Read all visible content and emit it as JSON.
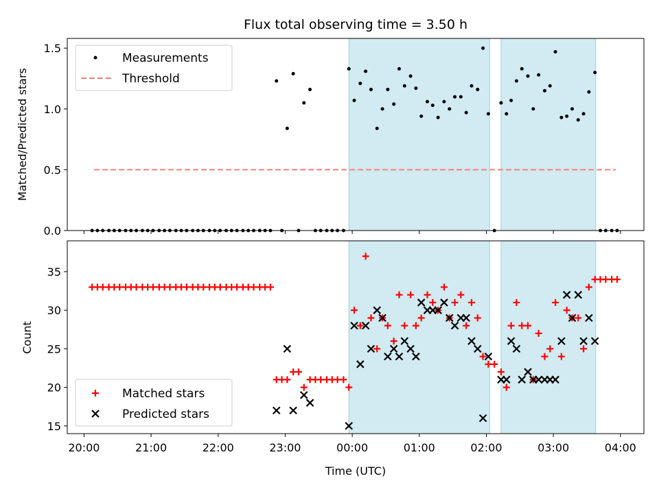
{
  "chart_data": {
    "title": "Flux total observing time = 3.50 h",
    "xlabel": "Time (UTC)",
    "x_ticks": [
      "20:00",
      "21:00",
      "22:00",
      "23:00",
      "00:00",
      "01:00",
      "02:00",
      "03:00",
      "04:00"
    ],
    "x_range_hours": [
      19.75,
      28.35
    ],
    "shaded_intervals_hours": [
      [
        23.95,
        26.05
      ],
      [
        26.22,
        27.63
      ]
    ],
    "shade_color": "#add8e6",
    "panels": [
      {
        "type": "scatter",
        "ylabel": "Matched/Predicted stars",
        "ylim": [
          0,
          1.58
        ],
        "y_ticks": [
          "0.0",
          "0.5",
          "1.0",
          "1.5"
        ],
        "legend": {
          "placement": "top-left",
          "entries": [
            "Measurements",
            "Threshold"
          ]
        },
        "threshold": {
          "name": "Threshold",
          "value": 0.5,
          "x_start": 20.15,
          "x_end": 27.93,
          "color": "#ff7f7f"
        },
        "series": [
          {
            "name": "Measurements",
            "color": "#000000",
            "points": [
              [
                20.12,
                0
              ],
              [
                20.2,
                0
              ],
              [
                20.28,
                0
              ],
              [
                20.37,
                0
              ],
              [
                20.45,
                0
              ],
              [
                20.53,
                0
              ],
              [
                20.62,
                0
              ],
              [
                20.7,
                0
              ],
              [
                20.78,
                0
              ],
              [
                20.87,
                0
              ],
              [
                20.95,
                0
              ],
              [
                21.03,
                0
              ],
              [
                21.12,
                0
              ],
              [
                21.2,
                0
              ],
              [
                21.28,
                0
              ],
              [
                21.37,
                0
              ],
              [
                21.45,
                0
              ],
              [
                21.53,
                0
              ],
              [
                21.62,
                0
              ],
              [
                21.7,
                0
              ],
              [
                21.78,
                0
              ],
              [
                21.87,
                0
              ],
              [
                21.95,
                0
              ],
              [
                22.03,
                0
              ],
              [
                22.12,
                0
              ],
              [
                22.2,
                0
              ],
              [
                22.28,
                0
              ],
              [
                22.37,
                0
              ],
              [
                22.45,
                0
              ],
              [
                22.53,
                0
              ],
              [
                22.62,
                0
              ],
              [
                22.7,
                0
              ],
              [
                22.78,
                0
              ],
              [
                22.87,
                1.23
              ],
              [
                22.95,
                0
              ],
              [
                23.03,
                0.84
              ],
              [
                23.12,
                1.29
              ],
              [
                23.2,
                0
              ],
              [
                23.28,
                1.05
              ],
              [
                23.37,
                1.16
              ],
              [
                23.45,
                0
              ],
              [
                23.53,
                0
              ],
              [
                23.62,
                0
              ],
              [
                23.7,
                0
              ],
              [
                23.78,
                0
              ],
              [
                23.87,
                0
              ],
              [
                23.95,
                1.33
              ],
              [
                24.03,
                1.07
              ],
              [
                24.12,
                1.21
              ],
              [
                24.2,
                1.31
              ],
              [
                24.28,
                1.16
              ],
              [
                24.37,
                0.84
              ],
              [
                24.45,
                1.0
              ],
              [
                24.53,
                1.16
              ],
              [
                24.62,
                1.04
              ],
              [
                24.7,
                1.33
              ],
              [
                24.78,
                1.19
              ],
              [
                24.87,
                1.27
              ],
              [
                24.95,
                1.17
              ],
              [
                25.03,
                0.94
              ],
              [
                25.12,
                1.06
              ],
              [
                25.2,
                1.03
              ],
              [
                25.28,
                0.93
              ],
              [
                25.37,
                1.06
              ],
              [
                25.45,
                1.0
              ],
              [
                25.53,
                1.1
              ],
              [
                25.62,
                1.1
              ],
              [
                25.7,
                0.97
              ],
              [
                25.78,
                1.19
              ],
              [
                25.87,
                1.16
              ],
              [
                25.95,
                1.5
              ],
              [
                26.03,
                0.96
              ],
              [
                26.12,
                0
              ],
              [
                26.22,
                1.05
              ],
              [
                26.3,
                0.96
              ],
              [
                26.37,
                1.07
              ],
              [
                26.45,
                1.23
              ],
              [
                26.53,
                1.33
              ],
              [
                26.62,
                1.27
              ],
              [
                26.7,
                1.0
              ],
              [
                26.78,
                1.28
              ],
              [
                26.87,
                1.15
              ],
              [
                26.95,
                1.19
              ],
              [
                27.03,
                1.47
              ],
              [
                27.12,
                0.93
              ],
              [
                27.2,
                0.94
              ],
              [
                27.28,
                1.0
              ],
              [
                27.37,
                0.91
              ],
              [
                27.45,
                0.96
              ],
              [
                27.53,
                1.14
              ],
              [
                27.62,
                1.3
              ],
              [
                27.7,
                0
              ],
              [
                27.78,
                0
              ],
              [
                27.87,
                0
              ],
              [
                27.95,
                0
              ]
            ]
          }
        ]
      },
      {
        "type": "scatter",
        "ylabel": "Count",
        "ylim": [
          14,
          39
        ],
        "y_ticks": [
          "15",
          "20",
          "25",
          "30",
          "35"
        ],
        "legend": {
          "placement": "bottom-left",
          "entries": [
            "Matched stars",
            "Predicted stars"
          ]
        },
        "series": [
          {
            "name": "Matched stars",
            "color": "#ff0000",
            "marker": "plus",
            "points": [
              [
                20.12,
                33
              ],
              [
                20.2,
                33
              ],
              [
                20.28,
                33
              ],
              [
                20.37,
                33
              ],
              [
                20.45,
                33
              ],
              [
                20.53,
                33
              ],
              [
                20.62,
                33
              ],
              [
                20.7,
                33
              ],
              [
                20.78,
                33
              ],
              [
                20.87,
                33
              ],
              [
                20.95,
                33
              ],
              [
                21.03,
                33
              ],
              [
                21.12,
                33
              ],
              [
                21.2,
                33
              ],
              [
                21.28,
                33
              ],
              [
                21.37,
                33
              ],
              [
                21.45,
                33
              ],
              [
                21.53,
                33
              ],
              [
                21.62,
                33
              ],
              [
                21.7,
                33
              ],
              [
                21.78,
                33
              ],
              [
                21.87,
                33
              ],
              [
                21.95,
                33
              ],
              [
                22.03,
                33
              ],
              [
                22.12,
                33
              ],
              [
                22.2,
                33
              ],
              [
                22.28,
                33
              ],
              [
                22.37,
                33
              ],
              [
                22.45,
                33
              ],
              [
                22.53,
                33
              ],
              [
                22.62,
                33
              ],
              [
                22.7,
                33
              ],
              [
                22.78,
                33
              ],
              [
                22.87,
                21
              ],
              [
                22.95,
                21
              ],
              [
                23.03,
                21
              ],
              [
                23.12,
                22
              ],
              [
                23.2,
                22
              ],
              [
                23.28,
                20
              ],
              [
                23.37,
                21
              ],
              [
                23.45,
                21
              ],
              [
                23.53,
                21
              ],
              [
                23.62,
                21
              ],
              [
                23.7,
                21
              ],
              [
                23.78,
                21
              ],
              [
                23.87,
                21
              ],
              [
                23.95,
                20
              ],
              [
                24.03,
                30
              ],
              [
                24.12,
                28
              ],
              [
                24.2,
                37
              ],
              [
                24.28,
                29
              ],
              [
                24.37,
                25
              ],
              [
                24.45,
                29
              ],
              [
                24.53,
                28
              ],
              [
                24.62,
                26
              ],
              [
                24.7,
                32
              ],
              [
                24.78,
                28
              ],
              [
                24.87,
                32
              ],
              [
                24.95,
                28
              ],
              [
                25.03,
                29
              ],
              [
                25.12,
                32
              ],
              [
                25.2,
                31
              ],
              [
                25.28,
                30
              ],
              [
                25.37,
                33
              ],
              [
                25.45,
                29
              ],
              [
                25.53,
                31
              ],
              [
                25.62,
                32
              ],
              [
                25.7,
                28
              ],
              [
                25.78,
                31
              ],
              [
                25.87,
                29
              ],
              [
                25.95,
                24
              ],
              [
                26.03,
                23
              ],
              [
                26.12,
                23
              ],
              [
                26.22,
                22
              ],
              [
                26.3,
                20
              ],
              [
                26.37,
                28
              ],
              [
                26.45,
                31
              ],
              [
                26.53,
                28
              ],
              [
                26.62,
                28
              ],
              [
                26.7,
                21
              ],
              [
                26.78,
                27
              ],
              [
                26.87,
                24
              ],
              [
                26.95,
                25
              ],
              [
                27.03,
                31
              ],
              [
                27.12,
                24
              ],
              [
                27.2,
                30
              ],
              [
                27.28,
                29
              ],
              [
                27.37,
                29
              ],
              [
                27.45,
                25
              ],
              [
                27.53,
                33
              ],
              [
                27.62,
                34
              ],
              [
                27.7,
                34
              ],
              [
                27.78,
                34
              ],
              [
                27.87,
                34
              ],
              [
                27.95,
                34
              ]
            ]
          },
          {
            "name": "Predicted stars",
            "color": "#000000",
            "marker": "x",
            "points": [
              [
                22.87,
                17
              ],
              [
                23.03,
                25
              ],
              [
                23.12,
                17
              ],
              [
                23.28,
                19
              ],
              [
                23.37,
                18
              ],
              [
                23.95,
                15
              ],
              [
                24.03,
                28
              ],
              [
                24.12,
                23
              ],
              [
                24.2,
                28
              ],
              [
                24.28,
                25
              ],
              [
                24.37,
                30
              ],
              [
                24.45,
                29
              ],
              [
                24.53,
                24
              ],
              [
                24.62,
                25
              ],
              [
                24.7,
                24
              ],
              [
                24.78,
                26
              ],
              [
                24.87,
                25
              ],
              [
                24.95,
                24
              ],
              [
                25.03,
                31
              ],
              [
                25.12,
                30
              ],
              [
                25.2,
                30
              ],
              [
                25.28,
                30
              ],
              [
                25.37,
                31
              ],
              [
                25.45,
                29
              ],
              [
                25.53,
                28
              ],
              [
                25.62,
                29
              ],
              [
                25.7,
                29
              ],
              [
                25.78,
                26
              ],
              [
                25.87,
                25
              ],
              [
                25.95,
                16
              ],
              [
                26.03,
                24
              ],
              [
                26.22,
                21
              ],
              [
                26.3,
                21
              ],
              [
                26.37,
                26
              ],
              [
                26.45,
                25
              ],
              [
                26.53,
                21
              ],
              [
                26.62,
                22
              ],
              [
                26.7,
                21
              ],
              [
                26.78,
                21
              ],
              [
                26.87,
                21
              ],
              [
                26.95,
                21
              ],
              [
                27.03,
                21
              ],
              [
                27.12,
                26
              ],
              [
                27.2,
                32
              ],
              [
                27.28,
                29
              ],
              [
                27.37,
                32
              ],
              [
                27.45,
                26
              ],
              [
                27.53,
                29
              ],
              [
                27.62,
                26
              ]
            ]
          }
        ]
      }
    ]
  }
}
